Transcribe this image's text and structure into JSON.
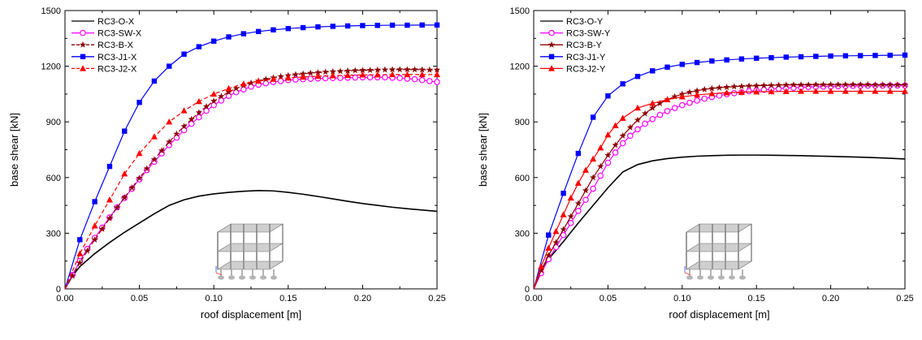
{
  "chart_data": [
    {
      "type": "line",
      "title": "",
      "xlabel": "roof displacement [m]",
      "ylabel": "base shear [kN]",
      "xlim": [
        0,
        0.25
      ],
      "ylim": [
        0,
        1500
      ],
      "x_ticks": [
        "0.00",
        "0.05",
        "0.10",
        "0.15",
        "0.20",
        "0.25"
      ],
      "y_ticks": [
        "0",
        "300",
        "600",
        "900",
        "1200",
        "1500"
      ],
      "grid": false,
      "legend_position": "top-left",
      "inset_image": "building-frame-model",
      "series": [
        {
          "name": "RC3-O-X",
          "color": "#000000",
          "dash": "solid",
          "marker": "none",
          "x": [
            0,
            0.005,
            0.01,
            0.02,
            0.03,
            0.04,
            0.05,
            0.06,
            0.07,
            0.08,
            0.09,
            0.1,
            0.11,
            0.12,
            0.13,
            0.14,
            0.15,
            0.16,
            0.17,
            0.18,
            0.19,
            0.2,
            0.21,
            0.22,
            0.23,
            0.24,
            0.25
          ],
          "y": [
            0,
            70,
            120,
            190,
            250,
            305,
            355,
            405,
            450,
            480,
            500,
            512,
            520,
            526,
            530,
            528,
            520,
            510,
            498,
            485,
            472,
            460,
            450,
            440,
            432,
            425,
            418
          ]
        },
        {
          "name": "RC3-SW-X",
          "color": "#ff00ff",
          "dash": "solid",
          "marker": "open-circle",
          "x": [
            0,
            0.005,
            0.01,
            0.015,
            0.02,
            0.025,
            0.03,
            0.035,
            0.04,
            0.045,
            0.05,
            0.055,
            0.06,
            0.065,
            0.07,
            0.075,
            0.08,
            0.085,
            0.09,
            0.095,
            0.1,
            0.105,
            0.11,
            0.115,
            0.12,
            0.125,
            0.13,
            0.135,
            0.14,
            0.145,
            0.15,
            0.155,
            0.16,
            0.165,
            0.17,
            0.175,
            0.18,
            0.185,
            0.19,
            0.195,
            0.2,
            0.205,
            0.21,
            0.215,
            0.22,
            0.225,
            0.23,
            0.235,
            0.24,
            0.245,
            0.25
          ],
          "y": [
            0,
            75,
            150,
            215,
            275,
            330,
            385,
            440,
            490,
            540,
            590,
            640,
            685,
            730,
            775,
            815,
            855,
            890,
            925,
            960,
            990,
            1015,
            1040,
            1060,
            1075,
            1090,
            1100,
            1108,
            1115,
            1120,
            1125,
            1128,
            1130,
            1132,
            1134,
            1135,
            1136,
            1137,
            1138,
            1139,
            1140,
            1140,
            1140,
            1140,
            1138,
            1136,
            1133,
            1130,
            1125,
            1120,
            1115
          ]
        },
        {
          "name": "RC3-B-X",
          "color": "#8b0000",
          "dash": "dashed",
          "marker": "star",
          "x": [
            0,
            0.005,
            0.01,
            0.015,
            0.02,
            0.025,
            0.03,
            0.035,
            0.04,
            0.045,
            0.05,
            0.055,
            0.06,
            0.065,
            0.07,
            0.075,
            0.08,
            0.085,
            0.09,
            0.095,
            0.1,
            0.105,
            0.11,
            0.115,
            0.12,
            0.125,
            0.13,
            0.135,
            0.14,
            0.145,
            0.15,
            0.155,
            0.16,
            0.165,
            0.17,
            0.175,
            0.18,
            0.185,
            0.19,
            0.195,
            0.2,
            0.205,
            0.21,
            0.215,
            0.22,
            0.225,
            0.23,
            0.235,
            0.24,
            0.245,
            0.25
          ],
          "y": [
            0,
            70,
            140,
            205,
            265,
            322,
            380,
            438,
            492,
            545,
            597,
            648,
            697,
            745,
            792,
            835,
            876,
            914,
            950,
            983,
            1012,
            1038,
            1060,
            1080,
            1096,
            1110,
            1121,
            1130,
            1138,
            1145,
            1150,
            1155,
            1159,
            1163,
            1166,
            1169,
            1171,
            1173,
            1175,
            1177,
            1178,
            1179,
            1180,
            1181,
            1182,
            1182,
            1182,
            1182,
            1181,
            1180,
            1180
          ]
        },
        {
          "name": "RC3-J1-X",
          "color": "#0000ff",
          "dash": "solid",
          "marker": "square",
          "x": [
            0,
            0.01,
            0.02,
            0.03,
            0.04,
            0.05,
            0.06,
            0.07,
            0.08,
            0.09,
            0.1,
            0.11,
            0.12,
            0.13,
            0.14,
            0.15,
            0.16,
            0.17,
            0.18,
            0.19,
            0.2,
            0.21,
            0.22,
            0.23,
            0.24,
            0.25
          ],
          "y": [
            0,
            265,
            470,
            660,
            850,
            1005,
            1120,
            1200,
            1265,
            1305,
            1335,
            1358,
            1375,
            1387,
            1396,
            1403,
            1408,
            1412,
            1415,
            1417,
            1419,
            1420,
            1421,
            1421,
            1422,
            1422
          ]
        },
        {
          "name": "RC3-J2-X",
          "color": "#ff0000",
          "dash": "dashed",
          "marker": "triangle",
          "x": [
            0,
            0.01,
            0.02,
            0.03,
            0.04,
            0.05,
            0.06,
            0.07,
            0.08,
            0.09,
            0.1,
            0.11,
            0.12,
            0.13,
            0.14,
            0.15,
            0.16,
            0.17,
            0.18,
            0.19,
            0.2,
            0.21,
            0.22,
            0.23,
            0.24,
            0.25
          ],
          "y": [
            0,
            190,
            340,
            480,
            620,
            730,
            820,
            900,
            960,
            1010,
            1050,
            1080,
            1105,
            1120,
            1130,
            1137,
            1142,
            1146,
            1149,
            1151,
            1153,
            1154,
            1155,
            1155,
            1155,
            1155
          ]
        }
      ]
    },
    {
      "type": "line",
      "title": "",
      "xlabel": "roof displacement [m]",
      "ylabel": "base shear [kN]",
      "xlim": [
        0,
        0.25
      ],
      "ylim": [
        0,
        1500
      ],
      "x_ticks": [
        "0.00",
        "0.05",
        "0.10",
        "0.15",
        "0.20",
        "0.25"
      ],
      "y_ticks": [
        "0",
        "300",
        "600",
        "900",
        "1200",
        "1500"
      ],
      "grid": false,
      "legend_position": "top-left",
      "inset_image": "building-frame-model",
      "series": [
        {
          "name": "RC3-O-Y",
          "color": "#000000",
          "dash": "solid",
          "marker": "none",
          "x": [
            0,
            0.005,
            0.01,
            0.02,
            0.03,
            0.04,
            0.05,
            0.06,
            0.07,
            0.08,
            0.09,
            0.1,
            0.11,
            0.12,
            0.13,
            0.14,
            0.15,
            0.16,
            0.17,
            0.18,
            0.19,
            0.2,
            0.21,
            0.22,
            0.23,
            0.24,
            0.25
          ],
          "y": [
            0,
            95,
            160,
            255,
            355,
            450,
            545,
            630,
            670,
            690,
            702,
            710,
            715,
            718,
            720,
            721,
            721,
            720,
            719,
            718,
            716,
            714,
            712,
            710,
            707,
            704,
            700
          ]
        },
        {
          "name": "RC3-SW-Y",
          "color": "#ff00ff",
          "dash": "solid",
          "marker": "open-circle",
          "x": [
            0,
            0.005,
            0.01,
            0.015,
            0.02,
            0.025,
            0.03,
            0.035,
            0.04,
            0.045,
            0.05,
            0.055,
            0.06,
            0.065,
            0.07,
            0.075,
            0.08,
            0.085,
            0.09,
            0.095,
            0.1,
            0.105,
            0.11,
            0.115,
            0.12,
            0.125,
            0.13,
            0.135,
            0.14,
            0.145,
            0.15,
            0.155,
            0.16,
            0.165,
            0.17,
            0.175,
            0.18,
            0.185,
            0.19,
            0.195,
            0.2,
            0.205,
            0.21,
            0.215,
            0.22,
            0.225,
            0.23,
            0.235,
            0.24,
            0.245,
            0.25
          ],
          "y": [
            0,
            85,
            160,
            225,
            290,
            355,
            420,
            480,
            540,
            610,
            680,
            735,
            785,
            825,
            860,
            890,
            915,
            938,
            958,
            975,
            990,
            1003,
            1015,
            1025,
            1034,
            1042,
            1049,
            1055,
            1060,
            1065,
            1069,
            1073,
            1076,
            1079,
            1082,
            1084,
            1086,
            1088,
            1089,
            1090,
            1091,
            1092,
            1093,
            1094,
            1094,
            1095,
            1095,
            1095,
            1096,
            1096,
            1096
          ]
        },
        {
          "name": "RC3-B-Y",
          "color": "#8b0000",
          "dash": "solid",
          "marker": "star",
          "x": [
            0,
            0.005,
            0.01,
            0.015,
            0.02,
            0.025,
            0.03,
            0.035,
            0.04,
            0.045,
            0.05,
            0.055,
            0.06,
            0.065,
            0.07,
            0.075,
            0.08,
            0.085,
            0.09,
            0.095,
            0.1,
            0.105,
            0.11,
            0.115,
            0.12,
            0.125,
            0.13,
            0.135,
            0.14,
            0.145,
            0.15,
            0.155,
            0.16,
            0.165,
            0.17,
            0.175,
            0.18,
            0.185,
            0.19,
            0.195,
            0.2,
            0.205,
            0.21,
            0.215,
            0.22,
            0.225,
            0.23,
            0.235,
            0.24,
            0.245,
            0.25
          ],
          "y": [
            0,
            100,
            180,
            250,
            320,
            390,
            460,
            530,
            600,
            660,
            720,
            775,
            825,
            870,
            910,
            945,
            975,
            1000,
            1020,
            1036,
            1050,
            1060,
            1068,
            1075,
            1080,
            1084,
            1087,
            1090,
            1092,
            1094,
            1095,
            1096,
            1097,
            1098,
            1099,
            1100,
            1100,
            1100,
            1101,
            1101,
            1101,
            1101,
            1101,
            1101,
            1101,
            1101,
            1100,
            1100,
            1100,
            1100,
            1100
          ]
        },
        {
          "name": "RC3-J1-Y",
          "color": "#0000ff",
          "dash": "solid",
          "marker": "square",
          "x": [
            0,
            0.01,
            0.02,
            0.03,
            0.04,
            0.05,
            0.06,
            0.07,
            0.08,
            0.09,
            0.1,
            0.11,
            0.12,
            0.13,
            0.14,
            0.15,
            0.16,
            0.17,
            0.18,
            0.19,
            0.2,
            0.21,
            0.22,
            0.23,
            0.24,
            0.25
          ],
          "y": [
            0,
            290,
            515,
            730,
            925,
            1040,
            1105,
            1145,
            1175,
            1195,
            1210,
            1220,
            1228,
            1234,
            1239,
            1243,
            1246,
            1249,
            1251,
            1253,
            1255,
            1256,
            1257,
            1258,
            1259,
            1260
          ]
        },
        {
          "name": "RC3-J2-Y",
          "color": "#ff0000",
          "dash": "solid",
          "marker": "triangle",
          "x": [
            0,
            0.005,
            0.01,
            0.015,
            0.02,
            0.025,
            0.03,
            0.035,
            0.04,
            0.045,
            0.05,
            0.055,
            0.06,
            0.07,
            0.08,
            0.09,
            0.1,
            0.11,
            0.12,
            0.13,
            0.14,
            0.15,
            0.16,
            0.17,
            0.18,
            0.19,
            0.2,
            0.21,
            0.22,
            0.23,
            0.24,
            0.25
          ],
          "y": [
            0,
            120,
            220,
            310,
            400,
            490,
            570,
            640,
            700,
            760,
            830,
            880,
            920,
            975,
            1000,
            1020,
            1035,
            1045,
            1052,
            1057,
            1060,
            1062,
            1063,
            1064,
            1065,
            1065,
            1065,
            1065,
            1065,
            1065,
            1065,
            1065
          ]
        }
      ]
    }
  ]
}
